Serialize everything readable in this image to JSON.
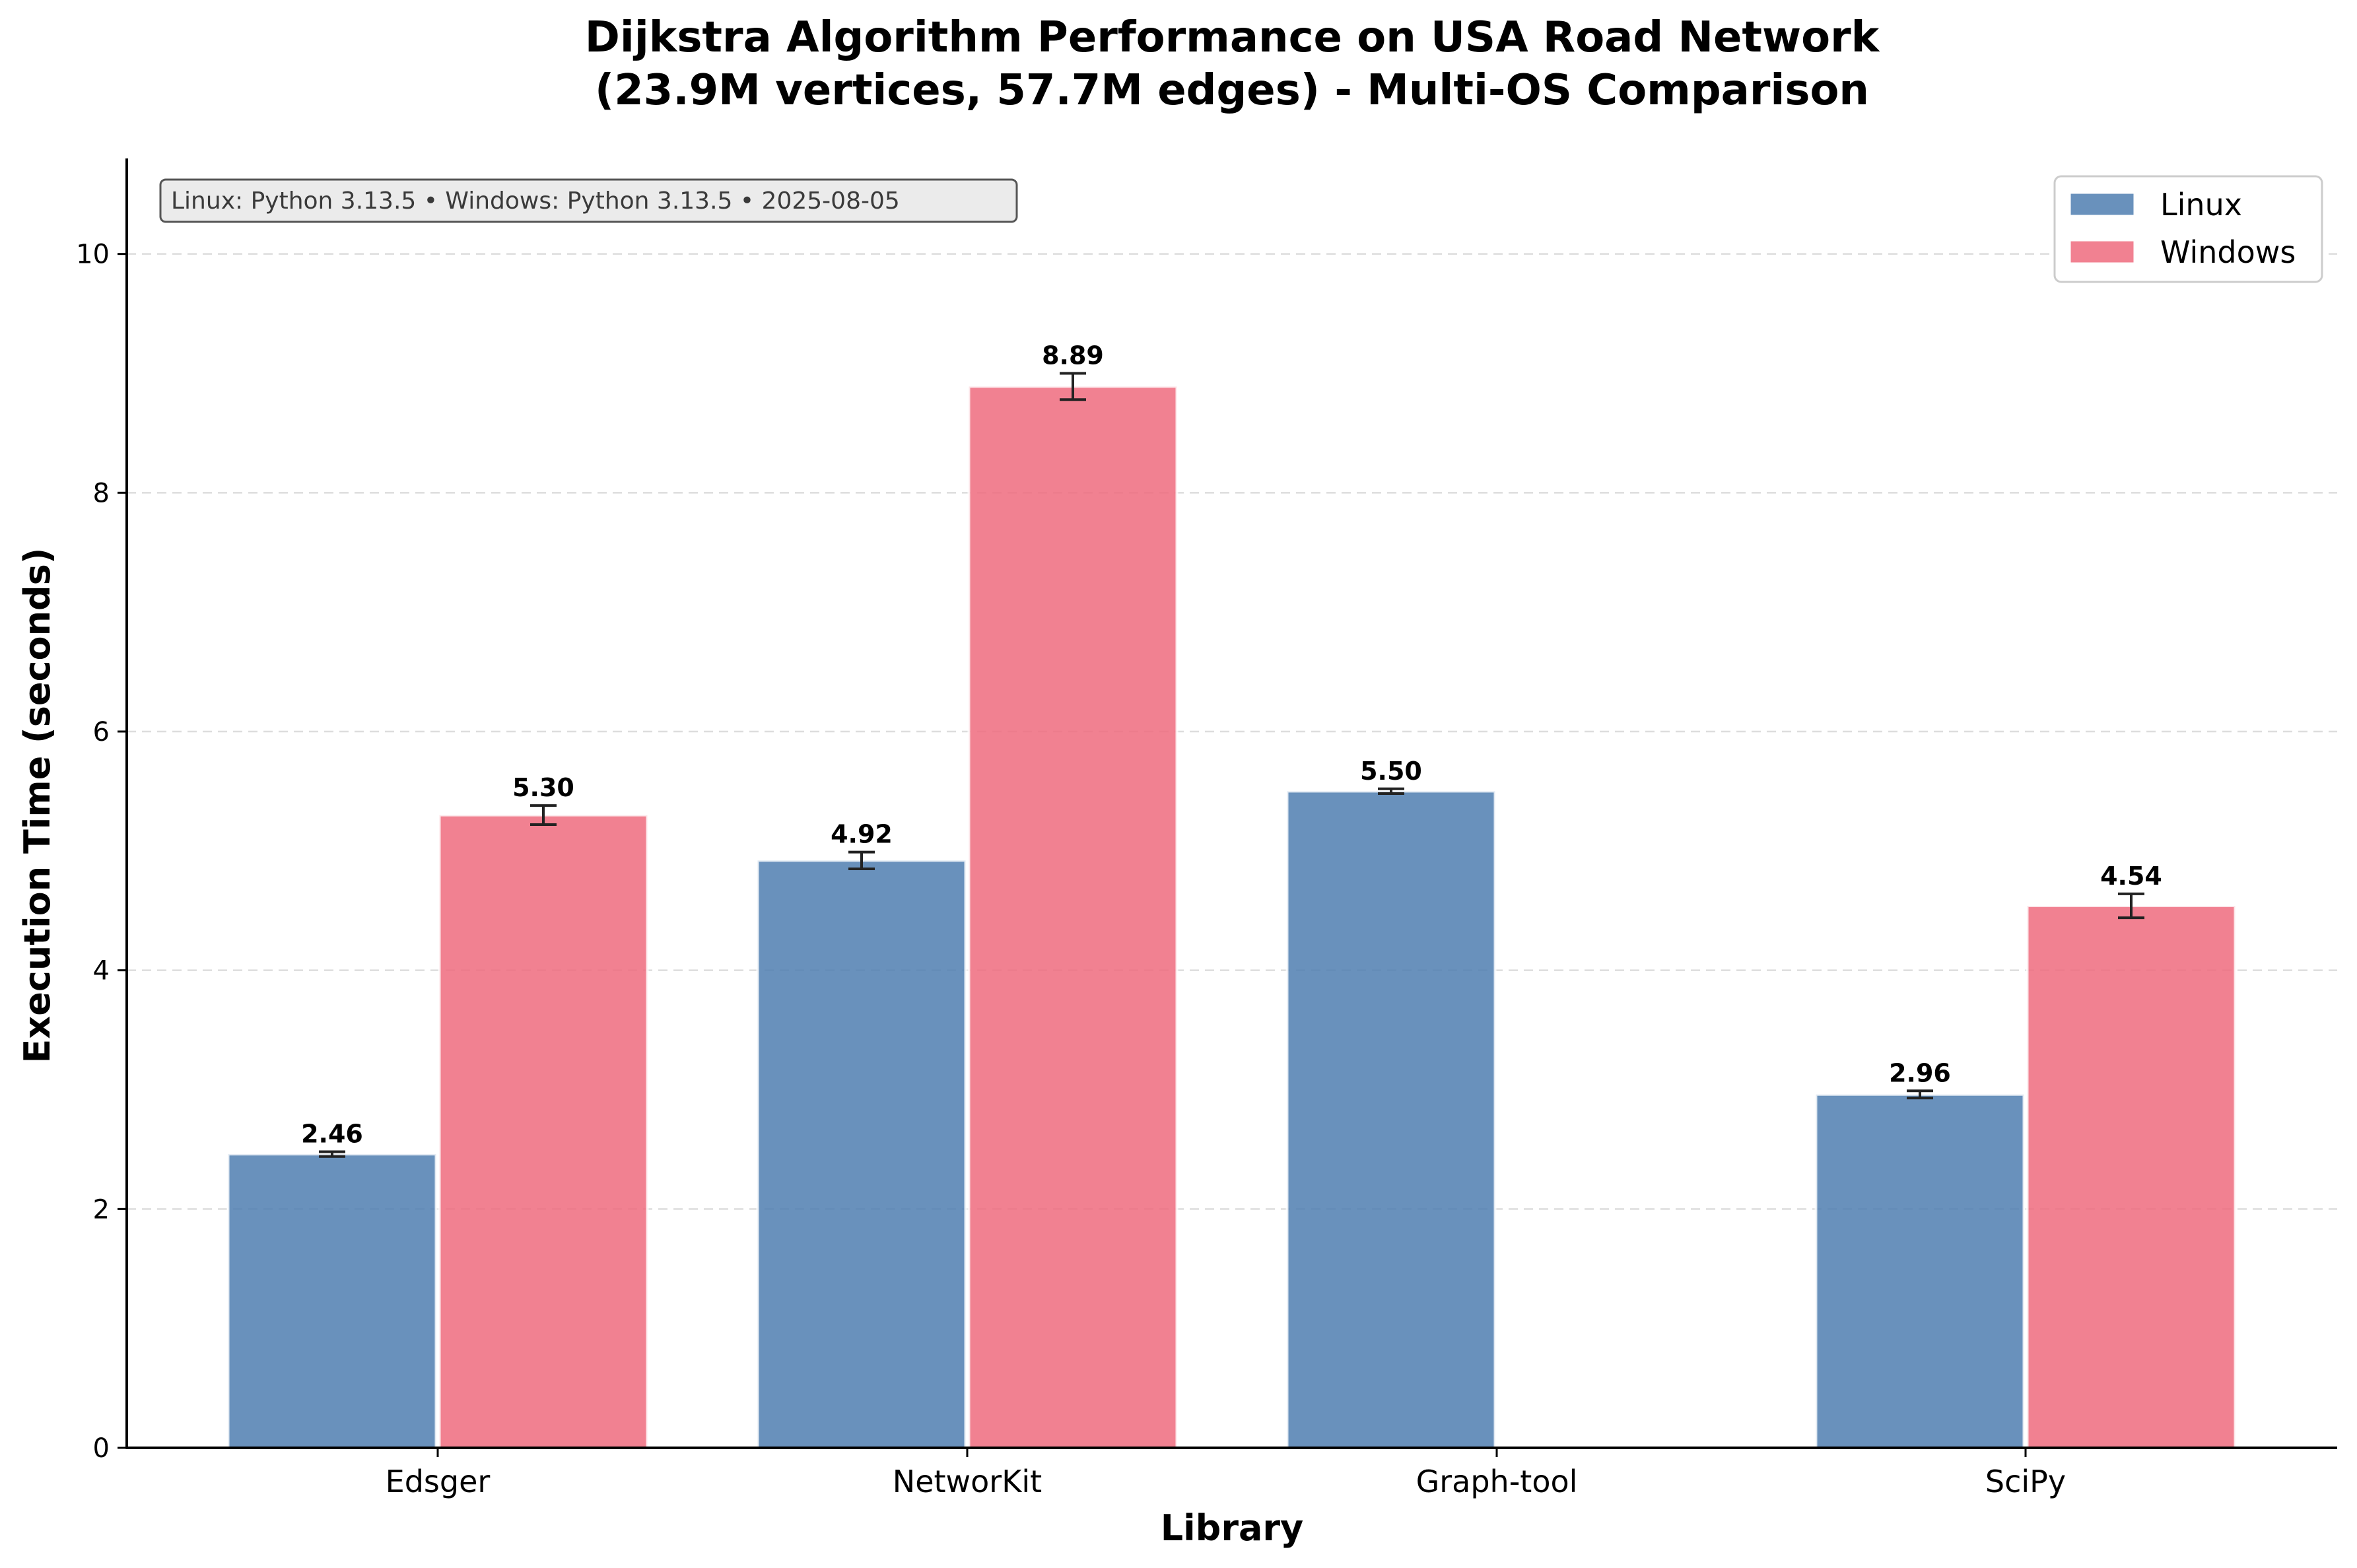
{
  "chart_data": {
    "type": "bar",
    "title_lines": [
      "Dijkstra Algorithm Performance on USA Road Network",
      "(23.9M vertices, 57.7M edges) - Multi-OS Comparison"
    ],
    "xlabel": "Library",
    "ylabel": "Execution Time (seconds)",
    "categories": [
      "Edsger",
      "NetworKit",
      "Graph-tool",
      "SciPy"
    ],
    "series": [
      {
        "name": "Linux",
        "color": "#4F7EB0",
        "values": [
          2.46,
          4.92,
          5.5,
          2.96
        ],
        "value_labels": [
          "2.46",
          "4.92",
          "5.50",
          "2.96"
        ],
        "errors": [
          0.02,
          0.07,
          0.02,
          0.03
        ]
      },
      {
        "name": "Windows",
        "color": "#EE6B7E",
        "values": [
          5.3,
          8.89,
          null,
          4.54
        ],
        "value_labels": [
          "5.30",
          "8.89",
          "",
          "4.54"
        ],
        "errors": [
          0.08,
          0.11,
          null,
          0.1
        ]
      }
    ],
    "ylim": [
      0,
      10.8
    ],
    "yticks": [
      0,
      2,
      4,
      6,
      8,
      10
    ],
    "ytick_labels": [
      "0",
      "2",
      "4",
      "6",
      "8",
      "10"
    ],
    "grid": "y-dashed",
    "legend_placement": "top-right",
    "info_box": "Linux: Python 3.13.5 • Windows: Python 3.13.5 • 2025-08-05"
  }
}
